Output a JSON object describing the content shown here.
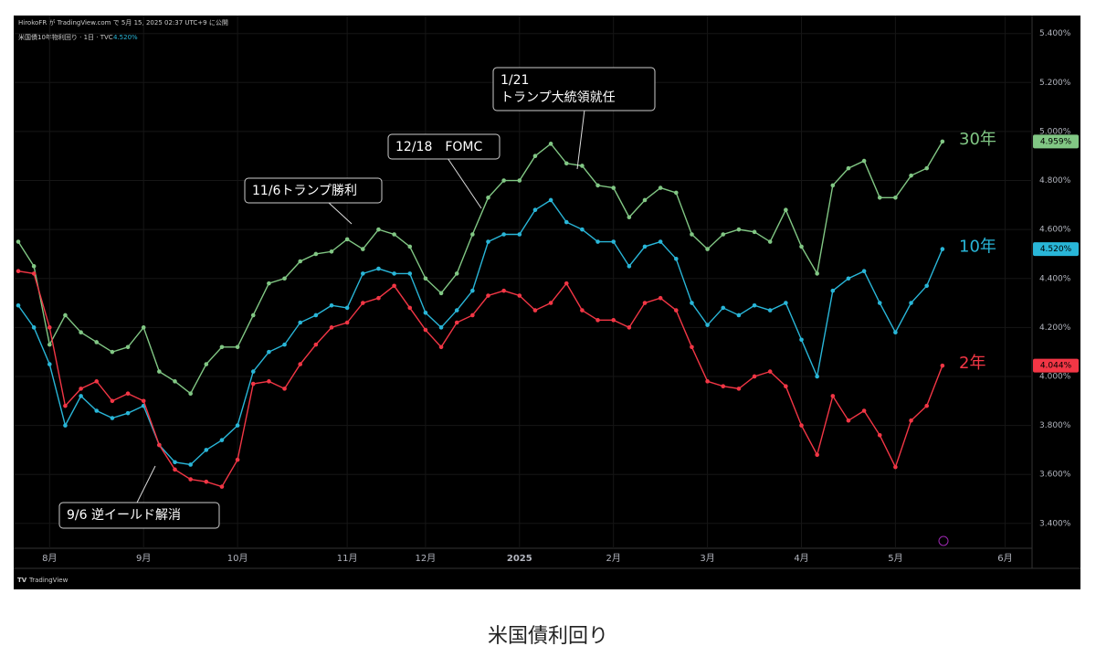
{
  "chart_data": {
    "type": "line",
    "title": "米国債利回り",
    "header": "HirokoFR が TradingView.com で 5月 15, 2025 02:37 UTC+9 に公開",
    "symbol": "米国債10年物利回り · 1日 · TVC",
    "symbol_value": "4.520%",
    "brand": "TradingView",
    "categories": [
      null,
      null,
      "8月",
      null,
      null,
      null,
      null,
      null,
      "9月",
      null,
      null,
      null,
      null,
      null,
      "10月",
      null,
      null,
      null,
      null,
      null,
      null,
      "11月",
      null,
      null,
      null,
      null,
      "12月",
      null,
      null,
      null,
      null,
      null,
      "2025",
      null,
      null,
      null,
      null,
      null,
      "2月",
      null,
      null,
      null,
      null,
      null,
      "3月",
      null,
      null,
      null,
      null,
      null,
      "4月",
      null,
      null,
      null,
      null,
      null,
      "5月",
      null,
      null,
      null,
      null,
      null,
      null,
      "6月"
    ],
    "series": [
      {
        "name": "30年",
        "color": "#81c784",
        "values": [
          4.55,
          4.45,
          4.13,
          4.25,
          4.18,
          4.14,
          4.1,
          4.12,
          4.2,
          4.02,
          3.98,
          3.93,
          4.05,
          4.12,
          4.12,
          4.25,
          4.38,
          4.4,
          4.47,
          4.5,
          4.51,
          4.56,
          4.52,
          4.6,
          4.58,
          4.53,
          4.4,
          4.34,
          4.42,
          4.58,
          4.73,
          4.8,
          4.8,
          4.9,
          4.95,
          4.87,
          4.86,
          4.78,
          4.77,
          4.65,
          4.72,
          4.77,
          4.75,
          4.58,
          4.52,
          4.58,
          4.6,
          4.59,
          4.55,
          4.68,
          4.53,
          4.42,
          4.78,
          4.85,
          4.88,
          4.73,
          4.73,
          4.82,
          4.85,
          4.959,
          null,
          null,
          null,
          null
        ],
        "value_labels": [
          null,
          null,
          null,
          null,
          null,
          null,
          null,
          null,
          null,
          null,
          null,
          null,
          null,
          null,
          null,
          null,
          null,
          null,
          null,
          null,
          null,
          null,
          null,
          null,
          null,
          null,
          null,
          null,
          null,
          null,
          null,
          null,
          null,
          null,
          null,
          null,
          null,
          null,
          null,
          null,
          null,
          null,
          null,
          null,
          null,
          null,
          null,
          null,
          null,
          null,
          null,
          null,
          null,
          null,
          null,
          null,
          null,
          null,
          null,
          "4.959%",
          null,
          null,
          null,
          null
        ]
      },
      {
        "name": "10年",
        "color": "#29b6d8",
        "values": [
          4.29,
          4.2,
          4.05,
          3.8,
          3.92,
          3.86,
          3.83,
          3.85,
          3.88,
          3.72,
          3.65,
          3.64,
          3.7,
          3.74,
          3.8,
          4.02,
          4.1,
          4.13,
          4.22,
          4.25,
          4.29,
          4.28,
          4.42,
          4.44,
          4.42,
          4.42,
          4.26,
          4.2,
          4.27,
          4.35,
          4.55,
          4.58,
          4.58,
          4.68,
          4.72,
          4.63,
          4.6,
          4.55,
          4.55,
          4.45,
          4.53,
          4.55,
          4.48,
          4.3,
          4.21,
          4.28,
          4.25,
          4.29,
          4.27,
          4.3,
          4.15,
          4.0,
          4.35,
          4.4,
          4.43,
          4.3,
          4.18,
          4.3,
          4.37,
          4.52,
          null,
          null,
          null,
          null
        ],
        "value_labels": [
          null,
          null,
          null,
          null,
          null,
          null,
          null,
          null,
          null,
          null,
          null,
          null,
          null,
          null,
          null,
          null,
          null,
          null,
          null,
          null,
          null,
          null,
          null,
          null,
          null,
          null,
          null,
          null,
          null,
          null,
          null,
          null,
          null,
          null,
          null,
          null,
          null,
          null,
          null,
          null,
          null,
          null,
          null,
          null,
          null,
          null,
          null,
          null,
          null,
          null,
          null,
          null,
          null,
          null,
          null,
          null,
          null,
          null,
          null,
          "4.520%",
          null,
          null,
          null,
          null
        ]
      },
      {
        "name": "2年",
        "color": "#f23645",
        "values": [
          4.43,
          4.42,
          4.2,
          3.88,
          3.95,
          3.98,
          3.9,
          3.93,
          3.9,
          3.72,
          3.62,
          3.58,
          3.57,
          3.55,
          3.66,
          3.97,
          3.98,
          3.95,
          4.05,
          4.13,
          4.2,
          4.22,
          4.3,
          4.32,
          4.37,
          4.28,
          4.19,
          4.12,
          4.22,
          4.25,
          4.33,
          4.35,
          4.33,
          4.27,
          4.3,
          4.38,
          4.27,
          4.23,
          4.23,
          4.2,
          4.3,
          4.32,
          4.27,
          4.12,
          3.98,
          3.96,
          3.95,
          4.0,
          4.02,
          3.96,
          3.8,
          3.68,
          3.92,
          3.82,
          3.86,
          3.76,
          3.63,
          3.82,
          3.88,
          4.044,
          null,
          null,
          null,
          null
        ],
        "value_labels": [
          null,
          null,
          null,
          null,
          null,
          null,
          null,
          null,
          null,
          null,
          null,
          null,
          null,
          null,
          null,
          null,
          null,
          null,
          null,
          null,
          null,
          null,
          null,
          null,
          null,
          null,
          null,
          null,
          null,
          null,
          null,
          null,
          null,
          null,
          null,
          null,
          null,
          null,
          null,
          null,
          null,
          null,
          null,
          null,
          null,
          null,
          null,
          null,
          null,
          null,
          null,
          null,
          null,
          null,
          null,
          null,
          null,
          null,
          null,
          "4.044%",
          null,
          null,
          null,
          null
        ]
      }
    ],
    "annotations": [
      {
        "text": [
          "9/6 逆イールド解消"
        ]
      },
      {
        "text": [
          "11/6トランプ勝利"
        ]
      },
      {
        "text": [
          "12/18　FOMC"
        ]
      },
      {
        "text": [
          "1/21",
          "トランプ大統領就任"
        ]
      }
    ],
    "ylim": [
      3.306,
      5.425
    ],
    "yticks": [
      {
        "value": 3.4,
        "label": "3.400%"
      },
      {
        "value": 3.6,
        "label": "3.600%"
      },
      {
        "value": 3.8,
        "label": "3.800%"
      },
      {
        "value": 4.0,
        "label": "4.000%"
      },
      {
        "value": 4.2,
        "label": "4.200%"
      },
      {
        "value": 4.4,
        "label": "4.400%"
      },
      {
        "value": 4.6,
        "label": "4.600%"
      },
      {
        "value": 4.8,
        "label": "4.800%"
      },
      {
        "value": 5.0,
        "label": "5.000%"
      },
      {
        "value": 5.2,
        "label": "5.200%"
      },
      {
        "value": 5.4,
        "label": "5.400%"
      }
    ],
    "grid": true
  }
}
